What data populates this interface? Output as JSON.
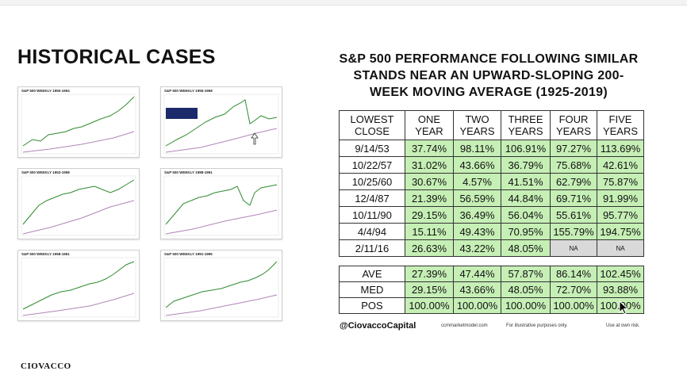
{
  "left_title": "HISTORICAL CASES",
  "thumbnails": [
    {
      "caption": "S&P 500 WEEKLY 1950-1954"
    },
    {
      "caption": "S&P 500 WEEKLY 1955-1958"
    },
    {
      "caption": "S&P 500 WEEKLY 1953-1958"
    },
    {
      "caption": "S&P 500 WEEKLY 1988-1991"
    },
    {
      "caption": "S&P 500 WEEKLY 1958-1961"
    },
    {
      "caption": "S&P 500 WEEKLY 1991-1995"
    }
  ],
  "right_title": {
    "line1": "S&P 500 PERFORMANCE FOLLOWING SIMILAR",
    "line2": "STANDS NEAR AN UPWARD-SLOPING 200-",
    "line3": "WEEK MOVING AVERAGE (1925-2019)"
  },
  "table": {
    "headers": [
      {
        "l1": "LOWEST",
        "l2": "CLOSE"
      },
      {
        "l1": "ONE",
        "l2": "YEAR"
      },
      {
        "l1": "TWO",
        "l2": "YEARS"
      },
      {
        "l1": "THREE",
        "l2": "YEARS"
      },
      {
        "l1": "FOUR",
        "l2": "YEARS"
      },
      {
        "l1": "FIVE",
        "l2": "YEARS"
      }
    ],
    "rows": [
      {
        "date": "9/14/53",
        "one": "37.74%",
        "two": "98.11%",
        "three": "106.91%",
        "four": "97.27%",
        "five": "113.69%"
      },
      {
        "date": "10/22/57",
        "one": "31.02%",
        "two": "43.66%",
        "three": "36.79%",
        "four": "75.68%",
        "five": "42.61%"
      },
      {
        "date": "10/25/60",
        "one": "30.67%",
        "two": "4.57%",
        "three": "41.51%",
        "four": "62.79%",
        "five": "75.87%"
      },
      {
        "date": "12/4/87",
        "one": "21.39%",
        "two": "56.59%",
        "three": "44.84%",
        "four": "69.71%",
        "five": "91.99%"
      },
      {
        "date": "10/11/90",
        "one": "29.15%",
        "two": "36.49%",
        "three": "56.04%",
        "four": "55.61%",
        "five": "95.77%"
      },
      {
        "date": "4/4/94",
        "one": "15.11%",
        "two": "49.43%",
        "three": "70.95%",
        "four": "155.79%",
        "five": "194.75%"
      },
      {
        "date": "2/11/16",
        "one": "26.63%",
        "two": "43.22%",
        "three": "48.05%",
        "four": "NA",
        "five": "NA"
      }
    ]
  },
  "summary": [
    {
      "label": "AVE",
      "one": "27.39%",
      "two": "47.44%",
      "three": "57.87%",
      "four": "86.14%",
      "five": "102.45%"
    },
    {
      "label": "MED",
      "one": "29.15%",
      "two": "43.66%",
      "three": "48.05%",
      "four": "72.70%",
      "five": "93.88%"
    },
    {
      "label": "POS",
      "one": "100.00%",
      "two": "100.00%",
      "three": "100.00%",
      "four": "100.00%",
      "five": "100.00%"
    }
  ],
  "footer": {
    "handle": "@CiovaccoCapital",
    "site": "ccmmarketmodel.com",
    "illustrative": "For illustrative purposes only.",
    "risk": "Use at own risk."
  },
  "brand": "CIOVACCO",
  "colors": {
    "positive_fill": "#c6efb6",
    "na_fill": "#d9d9d9",
    "price_line": "#2e8b2e",
    "ma_line": "#b085b6"
  }
}
